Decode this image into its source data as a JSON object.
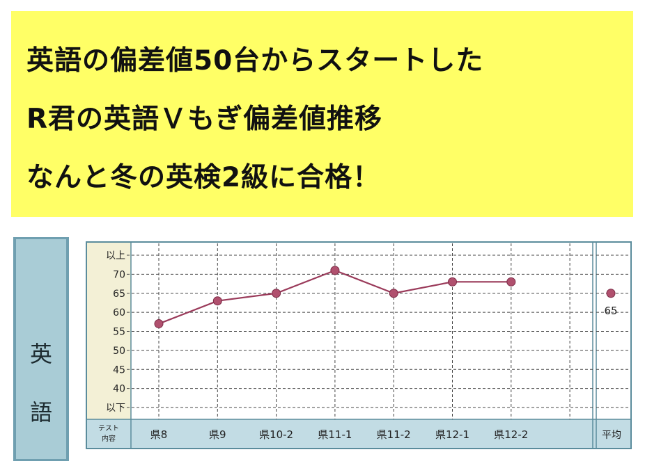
{
  "banner": {
    "line1": "英語の偏差値50台からスタートした",
    "line2": "R君の英語Ｖもぎ偏差値推移",
    "line3": "なんと冬の英検2級に合格！"
  },
  "subject": {
    "char1": "英",
    "char2": "語"
  },
  "chart_data": {
    "type": "line",
    "title": "",
    "xlabel": "テスト内容",
    "xlabel_lines": [
      "テスト",
      "内容"
    ],
    "ylabel": "",
    "categories": [
      "県8",
      "県9",
      "県10-2",
      "県11-1",
      "県11-2",
      "県12-1",
      "県12-2"
    ],
    "values": [
      57,
      63,
      65,
      71,
      65,
      68,
      68
    ],
    "ylim": [
      35,
      75
    ],
    "y_ticks": [
      {
        "label": "以上",
        "value": 75
      },
      {
        "label": "70",
        "value": 70
      },
      {
        "label": "65",
        "value": 65
      },
      {
        "label": "60",
        "value": 60
      },
      {
        "label": "55",
        "value": 55
      },
      {
        "label": "50",
        "value": 50
      },
      {
        "label": "45",
        "value": 45
      },
      {
        "label": "40",
        "value": 40
      },
      {
        "label": "以下",
        "value": 35
      }
    ],
    "average": {
      "label": "平均",
      "value": 65,
      "value_label": "65"
    },
    "colors": {
      "line": "#9a3a5a",
      "point": "#b0506e",
      "plot_bg": "#ffffff",
      "label_bg": "#c2dce4",
      "ytick_bg": "#f3f0d6",
      "frame": "#5b8c9c"
    },
    "grid": true
  }
}
